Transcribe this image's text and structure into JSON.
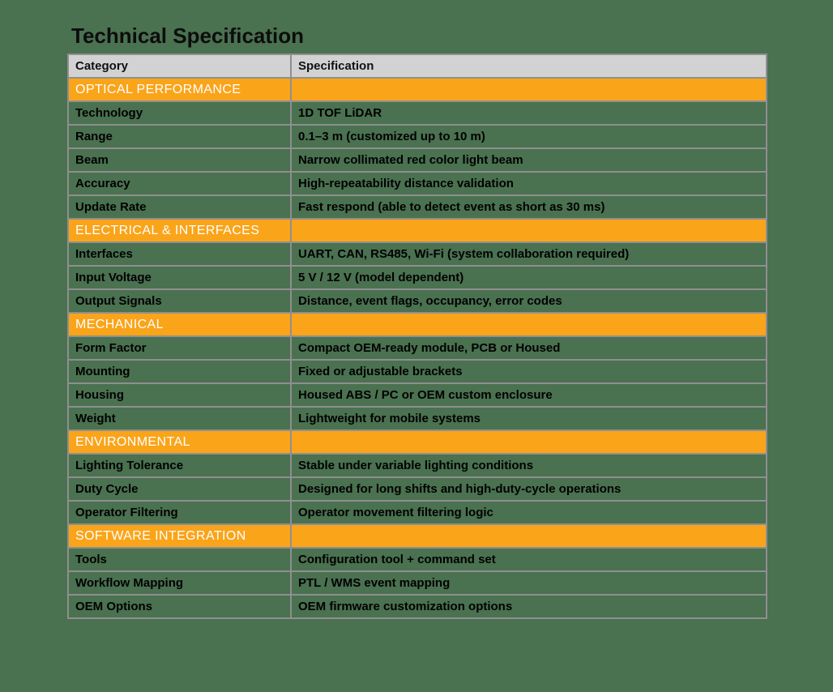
{
  "page": {
    "background_color": "#4a7150"
  },
  "title": "Technical Specification",
  "table": {
    "colors": {
      "header_bg": "#d2d2d2",
      "section_bg": "#faa41a",
      "section_text": "#ffffff",
      "border": "#8f8f8f",
      "text": "#000000"
    },
    "headers": [
      "Category",
      "Specification"
    ],
    "sections": [
      {
        "name": "OPTICAL PERFORMANCE",
        "rows": [
          {
            "category": "Technology",
            "specification": "1D TOF LiDAR"
          },
          {
            "category": "Range",
            "specification": "0.1–3 m (customized up to 10 m)"
          },
          {
            "category": "Beam",
            "specification": "Narrow collimated red color light beam"
          },
          {
            "category": "Accuracy",
            "specification": "High-repeatability distance validation"
          },
          {
            "category": "Update Rate",
            "specification": "Fast respond (able to detect event as short as 30 ms)"
          }
        ]
      },
      {
        "name": "ELECTRICAL & INTERFACES",
        "rows": [
          {
            "category": "Interfaces",
            "specification": "UART, CAN, RS485, Wi-Fi (system collaboration required)"
          },
          {
            "category": "Input Voltage",
            "specification": "5 V / 12 V (model dependent)"
          },
          {
            "category": "Output Signals",
            "specification": "Distance, event flags, occupancy, error codes"
          }
        ]
      },
      {
        "name": "MECHANICAL",
        "rows": [
          {
            "category": "Form Factor",
            "specification": "Compact OEM-ready module, PCB or Housed"
          },
          {
            "category": "Mounting",
            "specification": "Fixed or adjustable brackets"
          },
          {
            "category": "Housing",
            "specification": "Housed ABS / PC or OEM custom enclosure"
          },
          {
            "category": "Weight",
            "specification": "Lightweight for mobile systems"
          }
        ]
      },
      {
        "name": "ENVIRONMENTAL",
        "rows": [
          {
            "category": "Lighting Tolerance",
            "specification": "Stable under variable lighting conditions"
          },
          {
            "category": "Duty Cycle",
            "specification": "Designed for long shifts and high-duty-cycle operations"
          },
          {
            "category": "Operator Filtering",
            "specification": "Operator movement filtering logic"
          }
        ]
      },
      {
        "name": "SOFTWARE INTEGRATION",
        "rows": [
          {
            "category": "Tools",
            "specification": "Configuration tool + command set"
          },
          {
            "category": "Workflow Mapping",
            "specification": "PTL / WMS event mapping"
          },
          {
            "category": "OEM Options",
            "specification": "OEM firmware customization options"
          }
        ]
      }
    ]
  }
}
